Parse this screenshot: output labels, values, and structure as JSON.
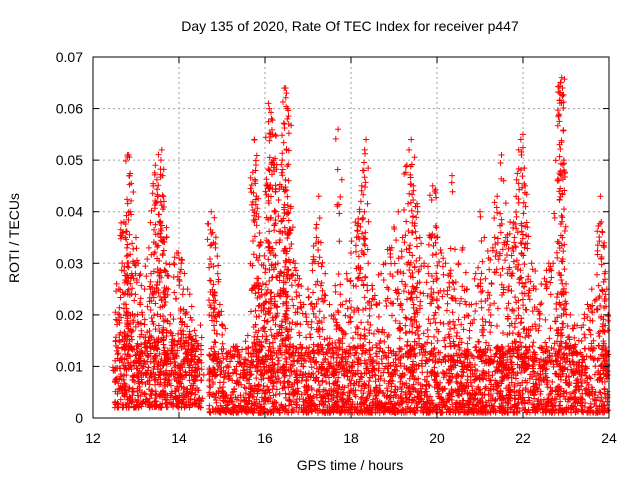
{
  "chart_data": {
    "type": "scatter",
    "title": "Day 135 of 2020, Rate Of TEC Index for receiver p447",
    "xlabel": "GPS time / hours",
    "ylabel": "ROTI / TECUs",
    "xlim": [
      12,
      24
    ],
    "ylim": [
      0,
      0.07
    ],
    "x_ticks": [
      "12",
      "14",
      "16",
      "18",
      "20",
      "22",
      "24"
    ],
    "y_ticks": [
      "0",
      "0.01",
      "0.02",
      "0.03",
      "0.04",
      "0.05",
      "0.06",
      "0.07"
    ],
    "grid": true,
    "marker": "+",
    "color": "#ff0000",
    "series": [
      {
        "name": "ROTI",
        "points": [
          [
            12.55,
            0.026
          ],
          [
            12.6,
            0.025
          ],
          [
            12.62,
            0.02
          ],
          [
            12.7,
            0.036
          ],
          [
            12.72,
            0.038
          ],
          [
            12.75,
            0.035
          ],
          [
            12.8,
            0.051
          ],
          [
            12.83,
            0.051
          ],
          [
            12.85,
            0.047
          ],
          [
            12.9,
            0.028
          ],
          [
            12.95,
            0.03
          ],
          [
            13.0,
            0.035
          ],
          [
            13.05,
            0.03
          ],
          [
            13.1,
            0.022
          ],
          [
            13.15,
            0.02
          ],
          [
            13.2,
            0.025
          ],
          [
            13.3,
            0.033
          ],
          [
            13.35,
            0.028
          ],
          [
            13.4,
            0.045
          ],
          [
            13.45,
            0.049
          ],
          [
            13.5,
            0.043
          ],
          [
            13.55,
            0.038
          ],
          [
            13.58,
            0.05
          ],
          [
            13.6,
            0.052
          ],
          [
            13.62,
            0.047
          ],
          [
            13.65,
            0.042
          ],
          [
            13.7,
            0.03
          ],
          [
            13.75,
            0.025
          ],
          [
            13.8,
            0.02
          ],
          [
            13.9,
            0.015
          ],
          [
            13.95,
            0.032
          ],
          [
            14.0,
            0.031
          ],
          [
            14.05,
            0.03
          ],
          [
            14.1,
            0.025
          ],
          [
            14.15,
            0.02
          ],
          [
            14.2,
            0.025
          ],
          [
            14.25,
            0.024
          ],
          [
            14.3,
            0.019
          ],
          [
            14.4,
            0.015
          ],
          [
            14.5,
            0.018
          ],
          [
            14.75,
            0.04
          ],
          [
            14.78,
            0.036
          ],
          [
            14.8,
            0.034
          ],
          [
            14.85,
            0.033
          ],
          [
            14.9,
            0.028
          ],
          [
            14.95,
            0.022
          ],
          [
            15.0,
            0.018
          ],
          [
            15.2,
            0.013
          ],
          [
            15.4,
            0.012
          ],
          [
            15.6,
            0.016
          ],
          [
            15.7,
            0.025
          ],
          [
            15.75,
            0.054
          ],
          [
            15.78,
            0.048
          ],
          [
            15.8,
            0.043
          ],
          [
            15.85,
            0.039
          ],
          [
            15.9,
            0.034
          ],
          [
            15.95,
            0.026
          ],
          [
            16.0,
            0.024
          ],
          [
            16.05,
            0.045
          ],
          [
            16.08,
            0.061
          ],
          [
            16.1,
            0.06
          ],
          [
            16.15,
            0.058
          ],
          [
            16.18,
            0.055
          ],
          [
            16.2,
            0.05
          ],
          [
            16.25,
            0.04
          ],
          [
            16.3,
            0.03
          ],
          [
            16.35,
            0.028
          ],
          [
            16.4,
            0.05
          ],
          [
            16.45,
            0.057
          ],
          [
            16.48,
            0.064
          ],
          [
            16.5,
            0.063
          ],
          [
            16.52,
            0.058
          ],
          [
            16.55,
            0.046
          ],
          [
            16.6,
            0.041
          ],
          [
            16.65,
            0.037
          ],
          [
            16.7,
            0.03
          ],
          [
            16.8,
            0.027
          ],
          [
            16.9,
            0.022
          ],
          [
            17.0,
            0.025
          ],
          [
            17.1,
            0.03
          ],
          [
            17.2,
            0.035
          ],
          [
            17.25,
            0.043
          ],
          [
            17.3,
            0.034
          ],
          [
            17.4,
            0.028
          ],
          [
            17.5,
            0.022
          ],
          [
            17.6,
            0.02
          ],
          [
            17.7,
            0.056
          ],
          [
            17.75,
            0.024
          ],
          [
            17.8,
            0.022
          ],
          [
            17.9,
            0.028
          ],
          [
            18.0,
            0.032
          ],
          [
            18.1,
            0.038
          ],
          [
            18.2,
            0.04
          ],
          [
            18.25,
            0.045
          ],
          [
            18.3,
            0.048
          ],
          [
            18.35,
            0.054
          ],
          [
            18.4,
            0.03
          ],
          [
            18.5,
            0.025
          ],
          [
            18.6,
            0.022
          ],
          [
            18.7,
            0.028
          ],
          [
            18.8,
            0.03
          ],
          [
            18.9,
            0.033
          ],
          [
            19.0,
            0.037
          ],
          [
            19.1,
            0.04
          ],
          [
            19.2,
            0.035
          ],
          [
            19.3,
            0.049
          ],
          [
            19.35,
            0.052
          ],
          [
            19.4,
            0.054
          ],
          [
            19.45,
            0.045
          ],
          [
            19.5,
            0.041
          ],
          [
            19.55,
            0.04
          ],
          [
            19.6,
            0.035
          ],
          [
            19.7,
            0.03
          ],
          [
            19.8,
            0.028
          ],
          [
            19.9,
            0.045
          ],
          [
            19.95,
            0.044
          ],
          [
            20.0,
            0.035
          ],
          [
            20.1,
            0.032
          ],
          [
            20.2,
            0.03
          ],
          [
            20.3,
            0.028
          ],
          [
            20.35,
            0.047
          ],
          [
            20.4,
            0.025
          ],
          [
            20.5,
            0.03
          ],
          [
            20.6,
            0.033
          ],
          [
            20.7,
            0.025
          ],
          [
            20.8,
            0.022
          ],
          [
            20.9,
            0.028
          ],
          [
            21.0,
            0.04
          ],
          [
            21.1,
            0.035
          ],
          [
            21.2,
            0.031
          ],
          [
            21.3,
            0.033
          ],
          [
            21.4,
            0.043
          ],
          [
            21.5,
            0.051
          ],
          [
            21.55,
            0.046
          ],
          [
            21.6,
            0.035
          ],
          [
            21.7,
            0.038
          ],
          [
            21.75,
            0.033
          ],
          [
            21.8,
            0.035
          ],
          [
            21.85,
            0.039
          ],
          [
            21.9,
            0.052
          ],
          [
            21.95,
            0.054
          ],
          [
            22.0,
            0.055
          ],
          [
            22.05,
            0.045
          ],
          [
            22.1,
            0.037
          ],
          [
            22.2,
            0.03
          ],
          [
            22.3,
            0.025
          ],
          [
            22.4,
            0.022
          ],
          [
            22.5,
            0.027
          ],
          [
            22.6,
            0.03
          ],
          [
            22.7,
            0.03
          ],
          [
            22.8,
            0.046
          ],
          [
            22.85,
            0.053
          ],
          [
            22.88,
            0.065
          ],
          [
            22.9,
            0.066
          ],
          [
            22.92,
            0.064
          ],
          [
            22.95,
            0.05
          ],
          [
            23.0,
            0.026
          ],
          [
            23.1,
            0.02
          ],
          [
            23.2,
            0.018
          ],
          [
            23.3,
            0.015
          ],
          [
            23.4,
            0.018
          ],
          [
            23.5,
            0.022
          ],
          [
            23.6,
            0.025
          ],
          [
            23.7,
            0.023
          ],
          [
            23.8,
            0.043
          ],
          [
            23.82,
            0.038
          ],
          [
            23.85,
            0.036
          ],
          [
            23.9,
            0.028
          ],
          [
            23.95,
            0.025
          ],
          [
            23.98,
            0.02
          ]
        ],
        "baseline_ranges": [
          {
            "x": [
              12.5,
              14.55
            ],
            "y": [
              0.002,
              0.016
            ]
          },
          {
            "x": [
              14.7,
              23.98
            ],
            "y": [
              0.001,
              0.014
            ]
          }
        ]
      }
    ]
  }
}
